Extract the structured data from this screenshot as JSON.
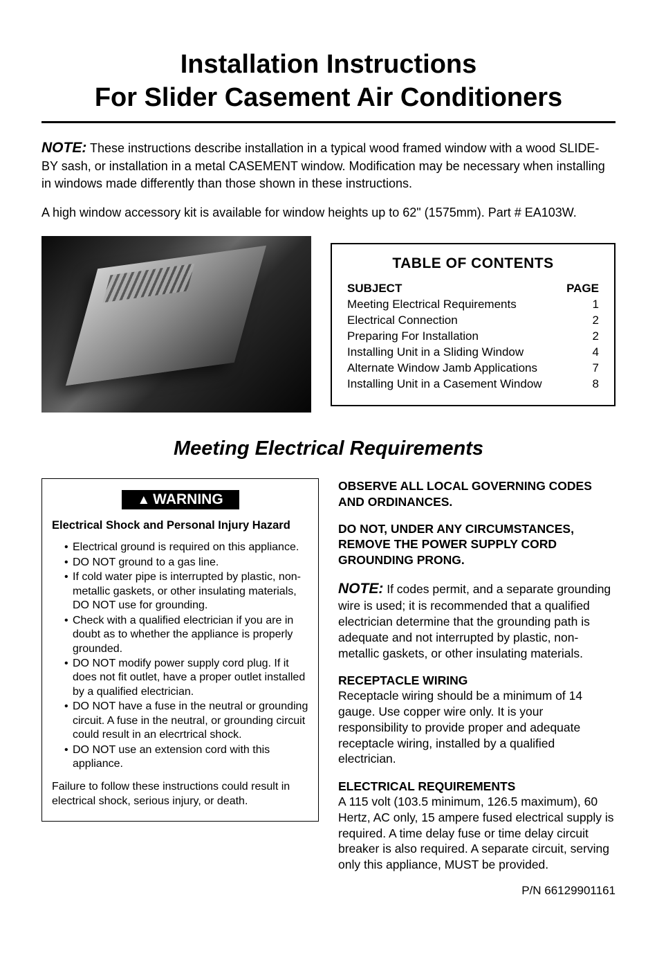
{
  "colors": {
    "text": "#000000",
    "background": "#ffffff",
    "badge_bg": "#000000",
    "badge_fg": "#ffffff",
    "rule": "#000000"
  },
  "typography": {
    "title_fontsize": 38,
    "body_fontsize": 18,
    "section_fontsize": 29,
    "toc_title_fontsize": 21,
    "warning_badge_fontsize": 21,
    "small_fontsize": 16
  },
  "title": {
    "line1": "Installation Instructions",
    "line2": "For Slider Casement Air Conditioners"
  },
  "note": {
    "label": "NOTE:",
    "text": "These instructions describe installation in a typical wood framed window with a wood SLIDE-BY sash, or installation in a metal CASEMENT window. Modification may be necessary when installing in windows made differently than those shown in these instructions."
  },
  "kit_para": "A high window accessory kit is available for window heights up to 62\" (1575mm). Part # EA103W.",
  "product_image": {
    "semantic": "air-conditioner-unit-photo",
    "grayscale": true
  },
  "toc": {
    "title": "TABLE OF CONTENTS",
    "subject_header": "SUBJECT",
    "page_header": "PAGE",
    "rows": [
      {
        "label": "Meeting Electrical Requirements",
        "page": "1"
      },
      {
        "label": "Electrical Connection",
        "page": "2"
      },
      {
        "label": "Preparing For Installation",
        "page": "2"
      },
      {
        "label": "Installing Unit in a Sliding Window",
        "page": "4"
      },
      {
        "label": "Alternate Window Jamb Applications",
        "page": "7"
      },
      {
        "label": "Installing Unit in a Casement Window",
        "page": "8"
      }
    ]
  },
  "section_heading": "Meeting Electrical Requirements",
  "warning": {
    "badge": "WARNING",
    "hazard": "Electrical Shock and Personal Injury Hazard",
    "bullets": [
      "Electrical ground is required on this appliance.",
      "DO NOT ground to a gas line.",
      "If cold water pipe is interrupted by plastic, non-metallic gaskets, or other insulating materials, DO NOT use for grounding.",
      "Check with a qualified electrician if you are in doubt as to whether the appliance is properly grounded.",
      "DO NOT modify power supply cord plug. If it does not fit outlet, have a proper outlet installed  by a qualified electrician.",
      "DO NOT have a fuse in the neutral or grounding circuit. A fuse in the neutral, or grounding circuit could result in an elecrtrical shock.",
      "DO NOT use an extension cord with this appliance."
    ],
    "failure": "Failure to follow these instructions could result in electrical shock, serious injury, or death."
  },
  "right_col": {
    "observe": "OBSERVE ALL LOCAL GOVERNING CODES AND ORDINANCES.",
    "do_not_remove": "DO NOT, UNDER ANY CIRCUMSTANCES, REMOVE THE POWER SUPPLY CORD GROUNDING PRONG.",
    "note_label": "NOTE:",
    "note_text": "If codes permit, and a separate grounding wire is used; it is recommended that a qualified electrician determine that the grounding path is adequate and not interrupted by plastic, non-metallic gaskets, or other insulating materials.",
    "receptacle_head": "RECEPTACLE WIRING",
    "receptacle_body": "Receptacle wiring should be a minimum of 14 gauge. Use copper wire only. It is your responsibility to provide proper and adequate receptacle wiring, installed by a qualified electrician.",
    "electrical_head": "ELECTRICAL REQUIREMENTS",
    "electrical_body": "A 115 volt (103.5 minimum, 126.5 maximum), 60 Hertz, AC only, 15 ampere fused electrical supply is required. A time delay fuse or time delay circuit breaker is also required. A separate circuit, serving only this appliance, MUST be provided."
  },
  "part_number": "P/N 66129901161"
}
